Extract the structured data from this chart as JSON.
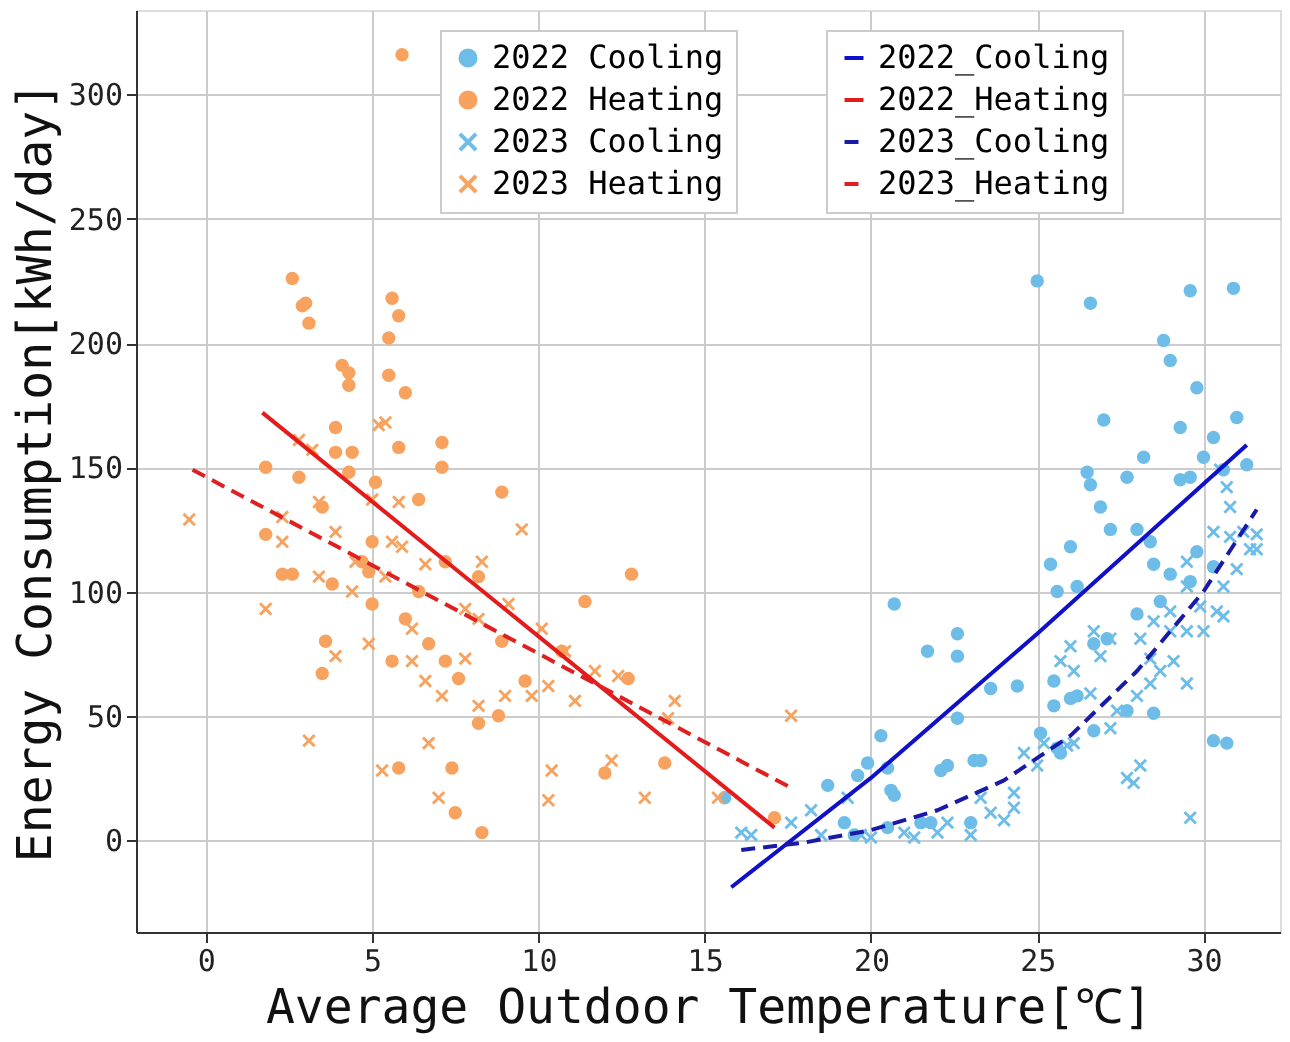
{
  "chart_data": {
    "type": "scatter",
    "xlabel": "Average Outdoor Temperature[℃]",
    "ylabel": "Energy Consumption[kWh/day]",
    "xlim": [
      -2.1,
      32.3
    ],
    "ylim": [
      -37,
      334
    ],
    "xticks": [
      0,
      5,
      10,
      15,
      20,
      25,
      30
    ],
    "yticks": [
      0,
      50,
      100,
      150,
      200,
      250,
      300
    ],
    "grid": true,
    "legend": "top",
    "series": [
      {
        "name": "2022 Cooling",
        "marker": "circle",
        "color": "#6dbde8",
        "x": [
          20.7,
          25.0,
          26.6,
          27.0,
          29.6,
          30.9,
          28.8,
          29.0,
          29.8,
          29.3,
          31.0,
          30.3,
          30.0,
          30.6,
          31.3,
          28.2,
          27.7,
          26.5,
          26.6,
          29.3,
          29.6,
          26.9,
          27.2,
          28.0,
          28.4,
          26.0,
          25.4,
          25.6,
          26.2,
          28.5,
          29.0,
          29.6,
          29.8,
          30.3,
          28.7,
          28.0,
          27.1,
          26.7,
          25.5,
          25.5,
          26.0,
          26.2,
          25.1,
          25.6,
          25.7,
          26.7,
          27.7,
          28.5,
          22.6,
          22.6,
          21.7,
          23.6,
          24.4,
          22.6,
          20.3,
          19.9,
          20.5,
          20.6,
          19.6,
          22.3,
          23.1,
          23.3,
          22.1,
          18.7,
          20.7,
          21.5,
          21.8,
          23.0,
          19.5,
          19.2,
          20.5,
          30.3,
          30.7,
          15.6
        ],
        "values": [
          95,
          225,
          216,
          169,
          221,
          222,
          201,
          193,
          182,
          166,
          170,
          162,
          154,
          149,
          151,
          154,
          146,
          148,
          143,
          145,
          146,
          134,
          125,
          125,
          120,
          118,
          111,
          100,
          102,
          111,
          107,
          104,
          116,
          110,
          96,
          91,
          81,
          79,
          64,
          54,
          57,
          58,
          43,
          37,
          35,
          44,
          52,
          51,
          83,
          74,
          76,
          61,
          62,
          49,
          42,
          31,
          29,
          20,
          26,
          30,
          32,
          32,
          28,
          22,
          18,
          7,
          7,
          7,
          2,
          7,
          5,
          40,
          39,
          17
        ]
      },
      {
        "name": "2022 Heating",
        "marker": "circle",
        "color": "#f7a25e",
        "x": [
          2.6,
          2.9,
          3.0,
          3.1,
          4.1,
          4.3,
          4.3,
          5.6,
          5.5,
          5.8,
          5.5,
          6.0,
          3.9,
          3.9,
          4.4,
          4.3,
          5.8,
          7.1,
          7.1,
          1.8,
          2.8,
          3.5,
          5.1,
          6.4,
          8.9,
          1.8,
          2.3,
          2.6,
          3.8,
          4.7,
          4.9,
          5.0,
          5.0,
          6.0,
          6.4,
          7.2,
          6.7,
          7.2,
          7.6,
          8.2,
          8.9,
          3.6,
          3.5,
          5.6,
          8.8,
          8.2,
          9.6,
          10.7,
          11.4,
          12.8,
          12.7,
          12.0,
          5.8,
          7.4,
          7.5,
          8.3,
          13.8,
          17.1,
          5.9
        ],
        "values": [
          226,
          215,
          216,
          208,
          191,
          188,
          183,
          218,
          202,
          211,
          187,
          180,
          166,
          156,
          156,
          148,
          158,
          160,
          150,
          150,
          146,
          134,
          144,
          137,
          140,
          123,
          107,
          107,
          103,
          112,
          108,
          120,
          95,
          89,
          100,
          112,
          79,
          72,
          65,
          106,
          80,
          80,
          67,
          72,
          50,
          47,
          64,
          76,
          96,
          107,
          65,
          27,
          29,
          29,
          11,
          3,
          31,
          9,
          316
        ]
      },
      {
        "name": "2023 Cooling",
        "marker": "cross",
        "color": "#6dbde8",
        "x": [
          16.1,
          16.4,
          17.6,
          18.2,
          18.5,
          19.3,
          19.7,
          20.0,
          21.0,
          21.3,
          22.0,
          22.3,
          23.0,
          23.3,
          23.6,
          24.0,
          24.3,
          24.6,
          24.3,
          25.0,
          25.2,
          25.9,
          25.7,
          26.0,
          26.1,
          26.6,
          26.7,
          26.9,
          27.2,
          27.4,
          27.2,
          27.7,
          27.9,
          28.1,
          28.0,
          28.4,
          28.4,
          28.1,
          28.5,
          29.0,
          29.1,
          29.5,
          29.6,
          29.5,
          29.5,
          29.5,
          29.9,
          30.0,
          30.3,
          30.4,
          30.6,
          30.6,
          30.8,
          30.8,
          31.0,
          31.2,
          31.4,
          31.6,
          31.6,
          30.7,
          30.5,
          29.0,
          28.7,
          26.1
        ],
        "values": [
          3,
          2,
          7,
          12,
          2,
          17,
          2,
          1,
          3,
          1,
          3,
          7,
          2,
          17,
          11,
          8,
          19,
          35,
          13,
          30,
          39,
          38,
          72,
          78,
          68,
          59,
          84,
          74,
          81,
          52,
          45,
          25,
          23,
          30,
          58,
          63,
          73,
          81,
          88,
          84,
          72,
          63,
          9,
          84,
          102,
          112,
          94,
          84,
          124,
          92,
          102,
          90,
          134,
          122,
          109,
          124,
          117,
          123,
          117,
          142,
          149,
          92,
          68,
          39
        ]
      },
      {
        "name": "2023 Heating",
        "marker": "cross",
        "color": "#f7a25e",
        "x": [
          -0.5,
          1.8,
          2.3,
          2.3,
          2.8,
          3.2,
          3.4,
          3.4,
          3.9,
          4.4,
          3.9,
          3.1,
          4.5,
          5.0,
          5.2,
          5.4,
          4.9,
          5.4,
          5.6,
          5.8,
          5.9,
          6.2,
          6.2,
          5.3,
          6.6,
          6.6,
          6.7,
          7.1,
          7.0,
          7.8,
          7.8,
          8.3,
          8.2,
          8.2,
          9.0,
          9.1,
          9.5,
          9.8,
          10.1,
          10.3,
          10.4,
          10.3,
          10.8,
          11.1,
          11.7,
          12.2,
          12.4,
          13.2,
          13.9,
          14.1,
          15.4,
          17.6
        ],
        "values": [
          129,
          93,
          120,
          130,
          161,
          157,
          136,
          106,
          124,
          100,
          74,
          40,
          112,
          137,
          167,
          168,
          79,
          106,
          120,
          136,
          118,
          85,
          72,
          28,
          111,
          64,
          39,
          58,
          17,
          73,
          93,
          112,
          89,
          54,
          58,
          95,
          125,
          58,
          85,
          62,
          28,
          16,
          76,
          56,
          68,
          32,
          66,
          17,
          49,
          56,
          17,
          50
        ]
      },
      {
        "name": "2022_Cooling",
        "type": "line",
        "line_style": "solid",
        "color": "#1010c8",
        "x": [
          15.8,
          20,
          25,
          31.3
        ],
        "values": [
          -19,
          25,
          83,
          159
        ]
      },
      {
        "name": "2022_Heating",
        "type": "line",
        "line_style": "solid",
        "color": "#e31b1b",
        "x": [
          1.7,
          17.1
        ],
        "values": [
          172,
          5
        ]
      },
      {
        "name": "2023_Cooling",
        "type": "line",
        "line_style": "dashed",
        "color": "#1a1aa8",
        "x": [
          16.1,
          18,
          20,
          22,
          24,
          26,
          28,
          30,
          31.6
        ],
        "values": [
          -4,
          -1,
          4,
          12,
          24,
          42,
          68,
          100,
          133
        ]
      },
      {
        "name": "2023_Heating",
        "type": "line",
        "line_style": "dashed",
        "color": "#e02020",
        "x": [
          -0.4,
          17.6
        ],
        "values": [
          149,
          21
        ]
      }
    ]
  }
}
